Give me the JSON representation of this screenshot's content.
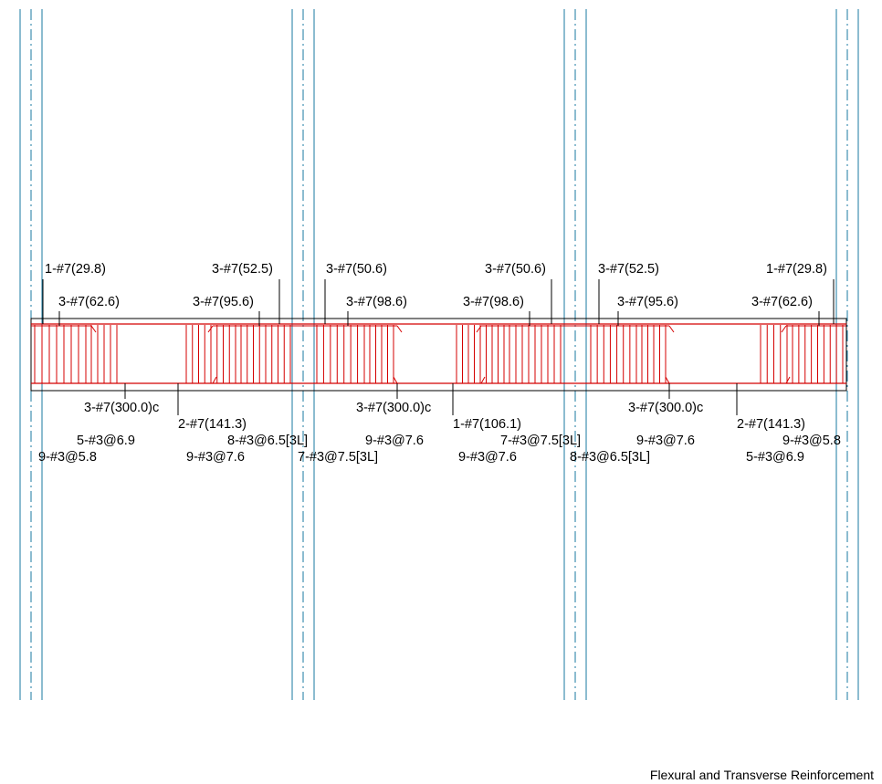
{
  "title": "Flexural and Transverse Reinforcement",
  "colors": {
    "column_lines": "#1a7aa0",
    "rebar": "#d40000",
    "outline": "#000000",
    "text": "#000000"
  },
  "labels": {
    "top_continuous": [
      "1-#7(29.8)",
      "3-#7(52.5)",
      "3-#7(50.6)",
      "3-#7(50.6)",
      "3-#7(52.5)",
      "1-#7(29.8)"
    ],
    "top_support": [
      "3-#7(62.6)",
      "3-#7(95.6)",
      "3-#7(98.6)",
      "3-#7(98.6)",
      "3-#7(95.6)",
      "3-#7(62.6)"
    ],
    "bottom_continuous": [
      "3-#7(300.0)c",
      "3-#7(300.0)c",
      "3-#7(300.0)c"
    ],
    "bottom_extra": [
      "2-#7(141.3)",
      "1-#7(106.1)",
      "2-#7(141.3)"
    ],
    "stirrups_row1": [
      "5-#3@6.9",
      "8-#3@6.5[3L]",
      "9-#3@7.6",
      "7-#3@7.5[3L]",
      "9-#3@7.6",
      "9-#3@5.8"
    ],
    "stirrups_row2": [
      "9-#3@5.8",
      "9-#3@7.6",
      "7-#3@7.5[3L]",
      "9-#3@7.6",
      "8-#3@6.5[3L]",
      "5-#3@6.9"
    ]
  }
}
